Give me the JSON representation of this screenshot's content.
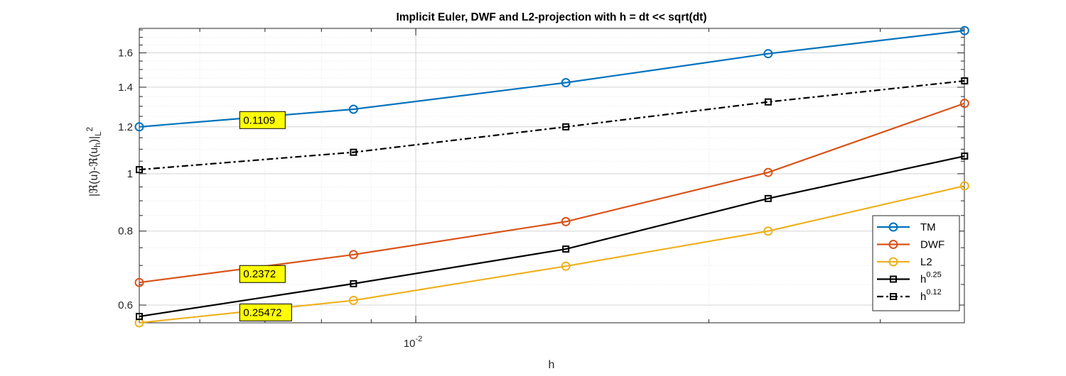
{
  "chart_data": {
    "type": "line",
    "title": "Implicit Euler, DWF and L2-projection with h = dt << sqrt(dt)",
    "xlabel": "h",
    "ylabel": {
      "main": "|ℜ(u)-ℜ(u",
      "sub_h": "h",
      "mid": ")|",
      "sub_L": "L",
      "sup_2": "2"
    },
    "x_scale": "log",
    "y_scale": "log",
    "xlim": [
      0.0052,
      0.0366
    ],
    "ylim": [
      0.56,
      1.76
    ],
    "grid": true,
    "x_ticks": [
      {
        "base": "10",
        "exp": "-2",
        "value": 0.01
      }
    ],
    "y_ticks": [
      {
        "label": "0.6",
        "value": 0.6
      },
      {
        "label": "0.8",
        "value": 0.8
      },
      {
        "label": "1",
        "value": 1.0
      },
      {
        "label": "1.2",
        "value": 1.2
      },
      {
        "label": "1.4",
        "value": 1.4
      },
      {
        "label": "1.6",
        "value": 1.6
      }
    ],
    "x": [
      0.0052,
      0.00863,
      0.01426,
      0.02301,
      0.03662
    ],
    "series": [
      {
        "name": "TM",
        "color": "#0072BD",
        "marker": "circle",
        "dash": "solid",
        "values": [
          1.2,
          1.285,
          1.425,
          1.595,
          1.745
        ]
      },
      {
        "name": "DWF",
        "color": "#D95319",
        "marker": "circle",
        "dash": "solid",
        "values": [
          0.655,
          0.73,
          0.83,
          1.005,
          1.315
        ]
      },
      {
        "name": "L2",
        "color": "#EDB120",
        "marker": "circle",
        "dash": "solid",
        "values": [
          0.56,
          0.611,
          0.698,
          0.8,
          0.954
        ]
      },
      {
        "name": "h",
        "name_sup": "0.25",
        "color": "#000000",
        "marker": "square",
        "dash": "solid",
        "values": [
          0.574,
          0.652,
          0.746,
          0.908,
          1.071
        ]
      },
      {
        "name": "h",
        "name_sup": "0.12",
        "color": "#000000",
        "marker": "square",
        "dash": "dashdot",
        "values": [
          1.016,
          1.087,
          1.2,
          1.322,
          1.435
        ]
      }
    ],
    "annotations": [
      {
        "text": "0.1109",
        "x": 0.00665,
        "y": 1.232,
        "background": "#FFFF00"
      },
      {
        "text": "0.2372",
        "x": 0.00665,
        "y": 0.677,
        "background": "#FFFF00"
      },
      {
        "text": "0.25472",
        "x": 0.00665,
        "y": 0.583,
        "background": "#FFFF00"
      }
    ],
    "legend": {
      "placement": "bottom-right"
    }
  }
}
